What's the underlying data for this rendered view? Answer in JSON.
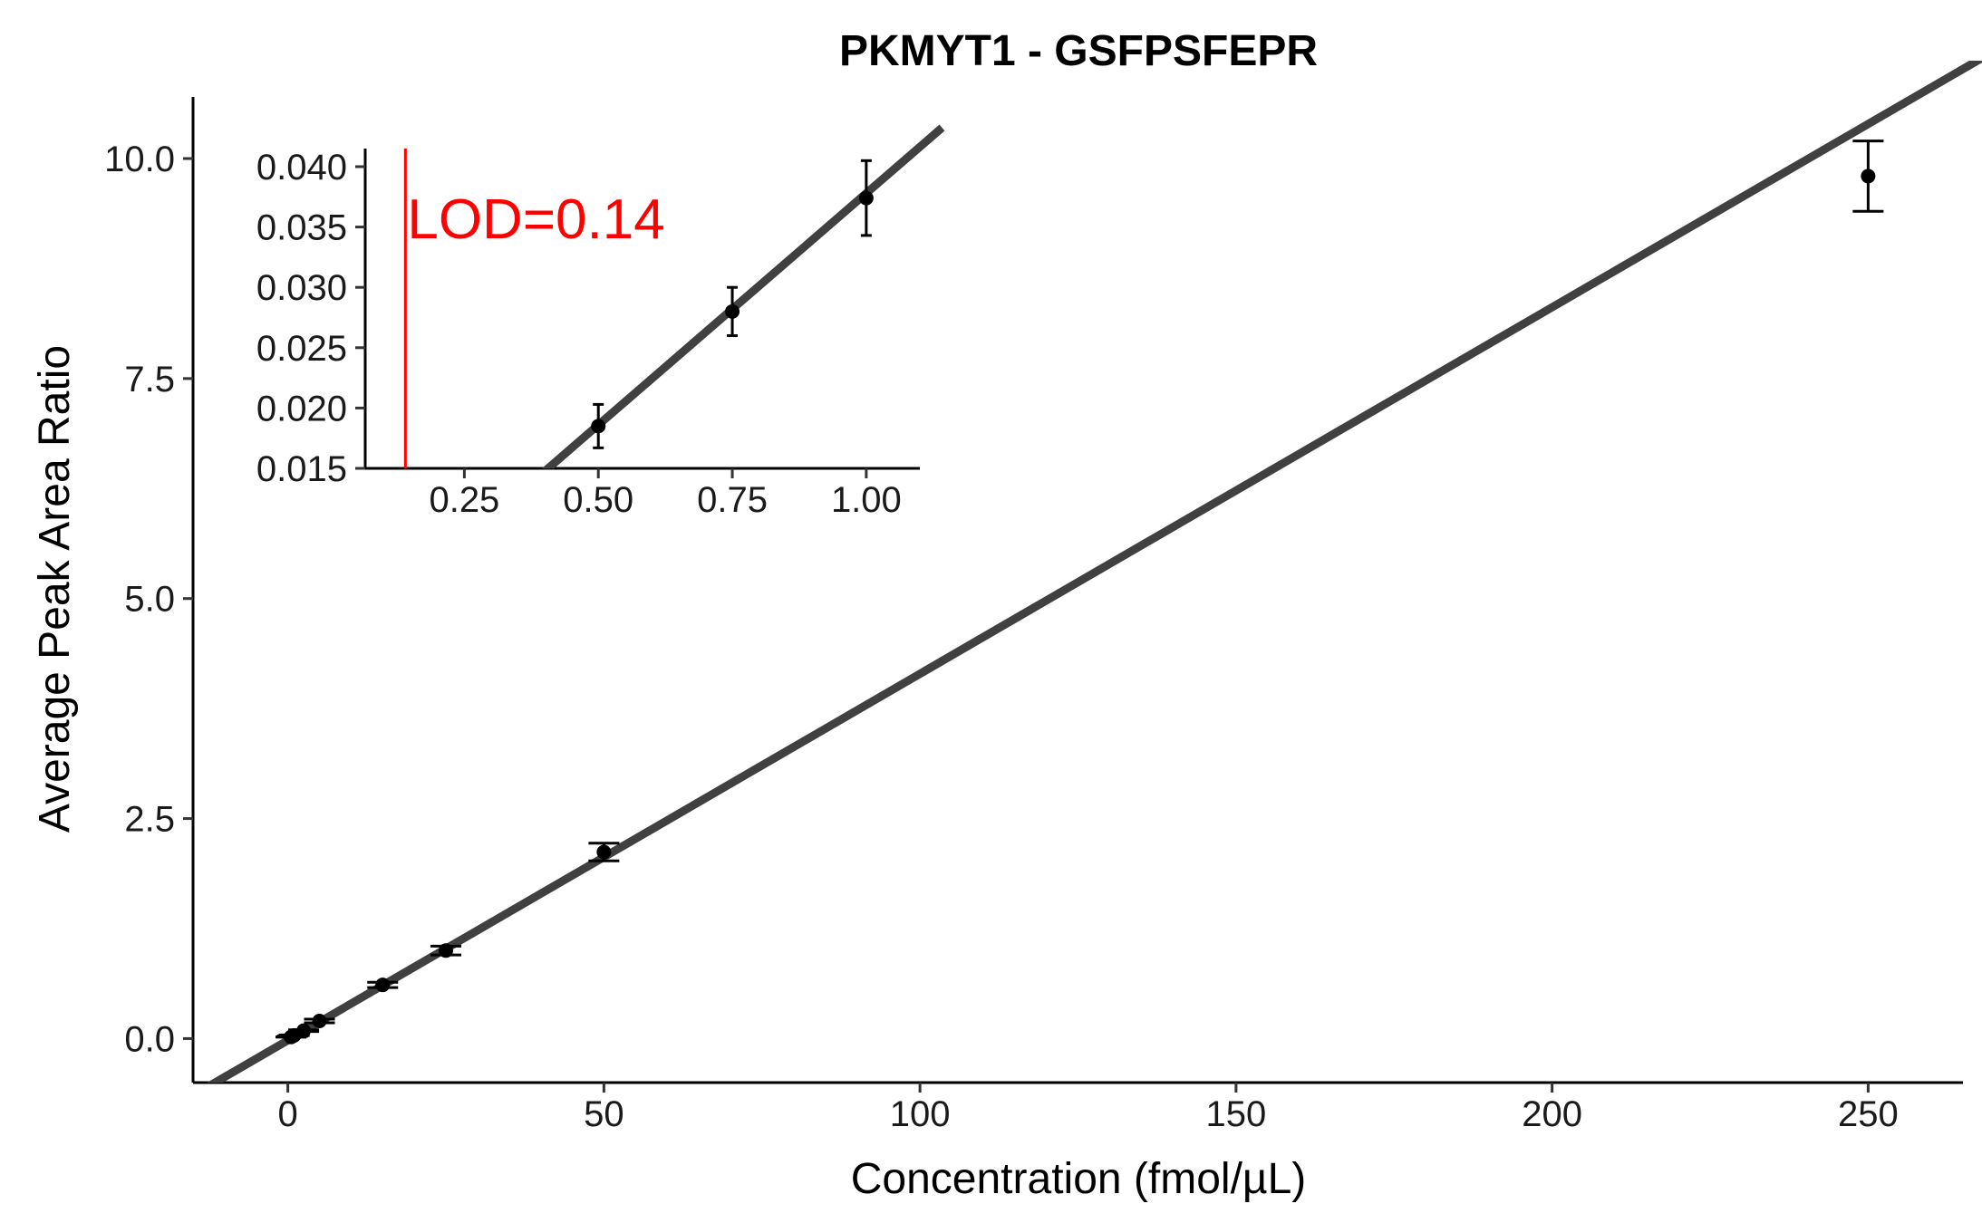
{
  "chart_data": [
    {
      "type": "scatter",
      "title": "PKMYT1 - GSFPSFEPR",
      "xlabel": "Concentration (fmol/µL)",
      "ylabel": "Average Peak Area Ratio",
      "xlim": [
        -15,
        265
      ],
      "ylim": [
        -0.5,
        10.7
      ],
      "xticks": [
        0,
        50,
        100,
        150,
        200,
        250
      ],
      "xtick_labels": [
        "0",
        "50",
        "100",
        "150",
        "200",
        "250"
      ],
      "yticks": [
        0,
        2.5,
        5,
        7.5,
        10
      ],
      "ytick_labels": [
        "0.0",
        "2.5",
        "5.0",
        "7.5",
        "10.0"
      ],
      "grid": false,
      "series": [
        {
          "x": [
            0.5,
            0.75,
            1,
            2.5,
            5,
            15,
            25,
            50,
            250
          ],
          "y": [
            0.018,
            0.028,
            0.037,
            0.09,
            0.2,
            0.61,
            1.0,
            2.12,
            9.8
          ],
          "yerr": [
            0.002,
            0.002,
            0.003,
            0.01,
            0.02,
            0.03,
            0.05,
            0.1,
            0.4
          ]
        }
      ],
      "fit_line": {
        "intercept": -0.02,
        "slope": 0.04165
      },
      "line_color": "#404040",
      "point_color": "#000000"
    },
    {
      "type": "scatter",
      "title": "",
      "xlim": [
        0.065,
        1.1
      ],
      "ylim": [
        0.015,
        0.0415
      ],
      "xticks": [
        0.25,
        0.5,
        0.75,
        1.0
      ],
      "xtick_labels": [
        "0.25",
        "0.50",
        "0.75",
        "1.00"
      ],
      "yticks": [
        0.015,
        0.02,
        0.025,
        0.03,
        0.035,
        0.04
      ],
      "ytick_labels": [
        "0.015",
        "0.020",
        "0.025",
        "0.030",
        "0.035",
        "0.040"
      ],
      "series": [
        {
          "x": [
            0.5,
            0.75,
            1.0
          ],
          "y": [
            0.0185,
            0.028,
            0.0374
          ],
          "yerr": [
            0.0018,
            0.002,
            0.0031
          ]
        }
      ],
      "fit_line": {
        "intercept": -0.0006,
        "slope": 0.0384
      },
      "lod": {
        "x": 0.14,
        "label": "LOD=0.14",
        "color": "#ff0000"
      }
    }
  ]
}
